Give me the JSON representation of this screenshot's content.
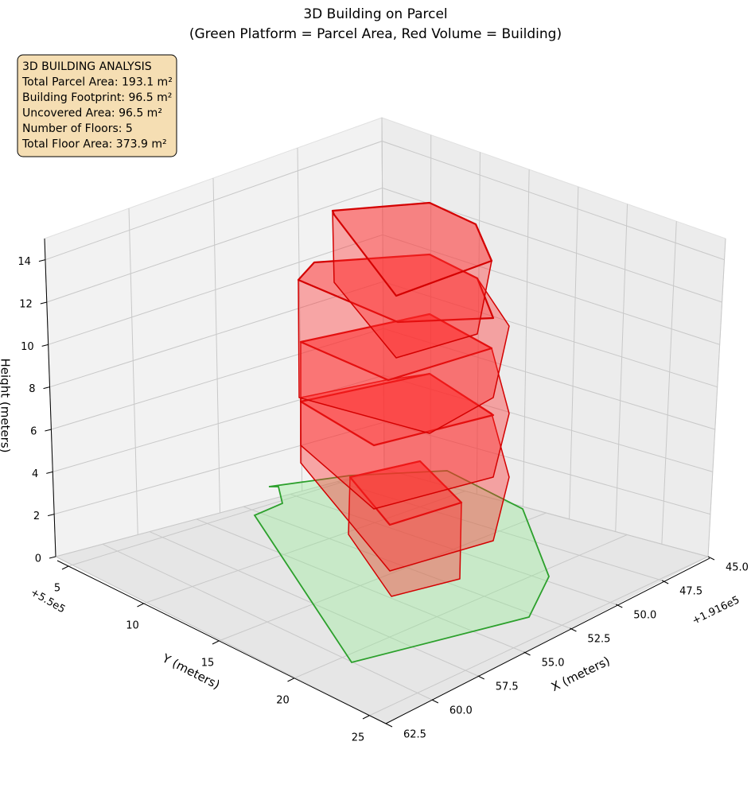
{
  "chart_data": {
    "type": "3d-building",
    "title": "3D Building on Parcel",
    "subtitle": "(Green Platform = Parcel Area, Red Volume = Building)",
    "info_box": [
      "3D BUILDING ANALYSIS",
      "Total Parcel Area: 193.1 m²",
      "Building Footprint: 96.5 m²",
      "Uncovered Area: 96.5 m²",
      "Number of Floors: 5",
      "Total Floor Area: 373.9 m²"
    ],
    "x_label": "X (meters)",
    "y_label": "Y (meters)",
    "z_label": "Height (meters)",
    "x_offset": "+1.916e5",
    "y_offset": "+5.5e5",
    "xlim": [
      45,
      62.5
    ],
    "xticks": [
      {
        "value": 45,
        "label": "45.0"
      },
      47.5,
      {
        "value": 50,
        "label": "50.0"
      },
      52.5,
      {
        "value": 55,
        "label": "55.0"
      },
      57.5,
      {
        "value": 60,
        "label": "60.0"
      },
      62.5
    ],
    "ylim": [
      5,
      25
    ],
    "yticks": [
      5,
      10,
      15,
      20,
      25
    ],
    "zlim": [
      0,
      15
    ],
    "zticks": [
      0,
      2,
      4,
      6,
      8,
      10,
      12,
      14
    ],
    "grid": true
  }
}
